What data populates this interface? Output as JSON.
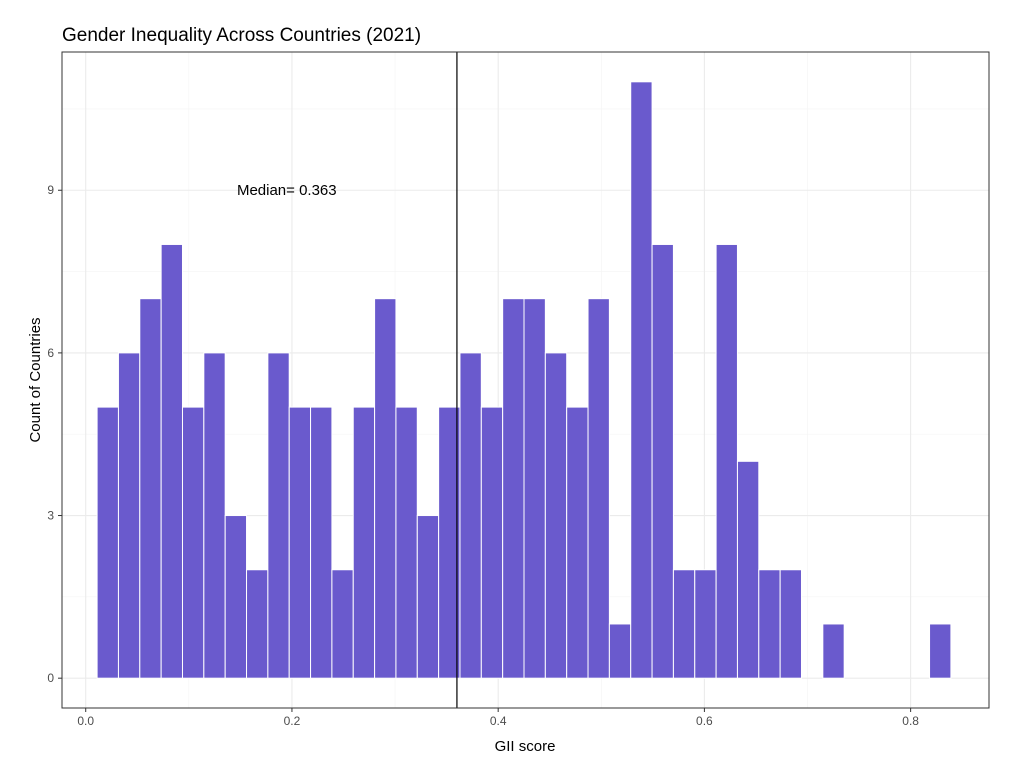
{
  "chart_data": {
    "type": "bar",
    "title": "Gender Inequality Across Countries (2021)",
    "xlabel": "GII score",
    "ylabel": "Count of Countries",
    "xlim": [
      -0.023,
      0.876
    ],
    "ylim": [
      -0.55,
      11.55
    ],
    "x_ticks": [
      0.0,
      0.2,
      0.4,
      0.6,
      0.8
    ],
    "x_tick_labels": [
      "0.0",
      "0.2",
      "0.4",
      "0.6",
      "0.8"
    ],
    "y_ticks": [
      0,
      3,
      6,
      9
    ],
    "y_tick_labels": [
      "0",
      "3",
      "6",
      "9"
    ],
    "grid": true,
    "bin_width": 0.0207,
    "bin_centers": [
      0.0214,
      0.0421,
      0.0628,
      0.0835,
      0.1042,
      0.1249,
      0.1456,
      0.1663,
      0.187,
      0.2077,
      0.2284,
      0.2491,
      0.2698,
      0.2905,
      0.3112,
      0.3319,
      0.3526,
      0.3733,
      0.394,
      0.4147,
      0.4354,
      0.4561,
      0.4768,
      0.4975,
      0.5182,
      0.5389,
      0.5596,
      0.5803,
      0.601,
      0.6217,
      0.6424,
      0.6631,
      0.6838,
      0.7045,
      0.7252,
      0.7459,
      0.7666,
      0.7873,
      0.808,
      0.8287
    ],
    "counts": [
      5,
      6,
      7,
      8,
      5,
      6,
      3,
      2,
      6,
      5,
      5,
      2,
      5,
      7,
      5,
      3,
      5,
      6,
      5,
      7,
      7,
      6,
      5,
      7,
      1,
      11,
      8,
      2,
      2,
      8,
      4,
      2,
      2,
      0,
      1,
      0,
      0,
      0,
      0,
      1
    ],
    "bar_color": "#6a5acd",
    "median": 0.36,
    "annotation": {
      "text": "Median= 0.363",
      "x": 0.195,
      "y": 9
    }
  }
}
